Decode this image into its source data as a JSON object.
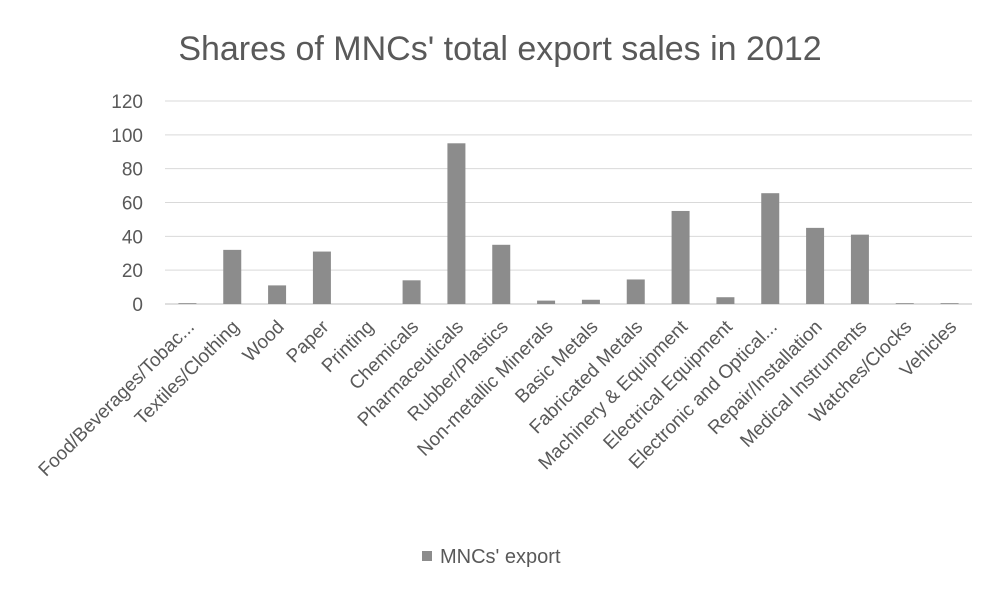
{
  "chart_data": {
    "type": "bar",
    "title": "Shares of MNCs' total export sales in 2012",
    "xlabel": "",
    "ylabel": "",
    "ylim": [
      0,
      120
    ],
    "yticks": [
      0,
      20,
      40,
      60,
      80,
      100,
      120
    ],
    "grid": true,
    "legend_position": "bottom",
    "categories": [
      "Food/Beverages/Tobac...",
      "Textiles/Clothing",
      "Wood",
      "Paper",
      "Printing",
      "Chemicals",
      "Pharmaceuticals",
      "Rubber/Plastics",
      "Non-metallic Minerals",
      "Basic Metals",
      "Fabricated Metals",
      "Machinery & Equipment",
      "Electrical Equipment",
      "Electronic and Optical...",
      "Repair/Installation",
      "Medical Instruments",
      "Watches/Clocks",
      "Vehicles"
    ],
    "series": [
      {
        "name": "MNCs' export",
        "color": "#8c8c8c",
        "values": [
          0.5,
          32,
          11,
          31,
          0,
          14,
          95,
          35,
          2,
          2.5,
          14.5,
          55,
          4,
          65.5,
          45,
          41,
          0.5,
          0.5
        ]
      }
    ]
  }
}
